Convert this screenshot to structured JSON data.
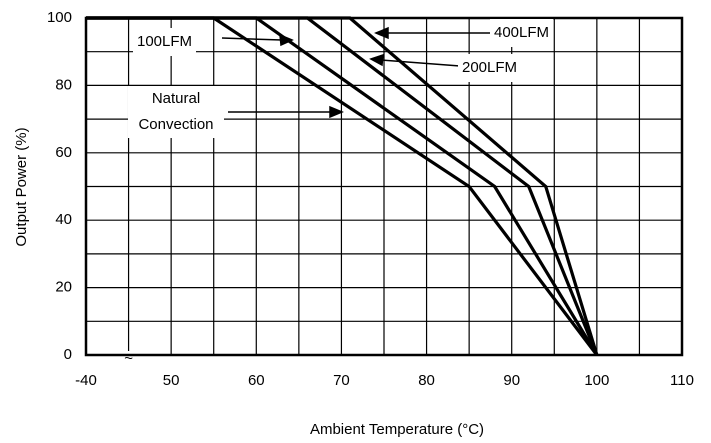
{
  "chart_data": {
    "type": "line",
    "x_label": "Ambient Temperature (°C)",
    "y_label": "Output Power (%)",
    "xlim": [
      -40,
      110
    ],
    "x_break": {
      "from": -40,
      "to": 40,
      "label": "~"
    },
    "xticks": [
      -40,
      50,
      60,
      70,
      80,
      90,
      100,
      110
    ],
    "xgrid": [
      45,
      55,
      65,
      75,
      85,
      95,
      105
    ],
    "ylim": [
      0,
      100
    ],
    "yticks": [
      0,
      20,
      40,
      60,
      80,
      100
    ],
    "ygrid": [
      10,
      30,
      50,
      70,
      90
    ],
    "grid": true,
    "color": "#000000",
    "series": [
      {
        "name": "Natural Convection",
        "x": [
          -40,
          55,
          85,
          100
        ],
        "values": [
          100,
          100,
          50,
          0
        ]
      },
      {
        "name": "100LFM",
        "x": [
          -40,
          60,
          88,
          100
        ],
        "values": [
          100,
          100,
          50,
          0
        ]
      },
      {
        "name": "200LFM",
        "x": [
          -40,
          66,
          92,
          100
        ],
        "values": [
          100,
          100,
          50,
          0
        ]
      },
      {
        "name": "400LFM",
        "x": [
          -40,
          71,
          94,
          100
        ],
        "values": [
          100,
          100,
          50,
          0
        ]
      }
    ]
  }
}
